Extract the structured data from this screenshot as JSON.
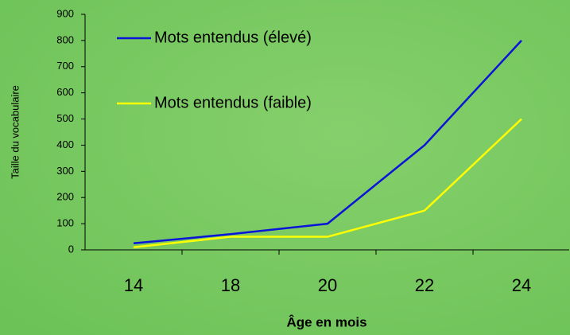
{
  "chart_data": {
    "type": "line",
    "x_label": "Âge en mois",
    "y_label": "Taille du vocabulaire",
    "categories": [
      "14",
      "18",
      "20",
      "22",
      "24"
    ],
    "series": [
      {
        "name": "Mots entendus (élevé)",
        "color": "#0a14d8",
        "values": [
          25,
          60,
          100,
          400,
          800
        ]
      },
      {
        "name": "Mots entendus (faible)",
        "color": "#ffff00",
        "values": [
          10,
          50,
          50,
          150,
          500
        ]
      }
    ],
    "ylim": [
      0,
      900
    ],
    "yticks": [
      0,
      100,
      200,
      300,
      400,
      500,
      600,
      700,
      800,
      900
    ],
    "grid": false,
    "legend": "top-left"
  }
}
